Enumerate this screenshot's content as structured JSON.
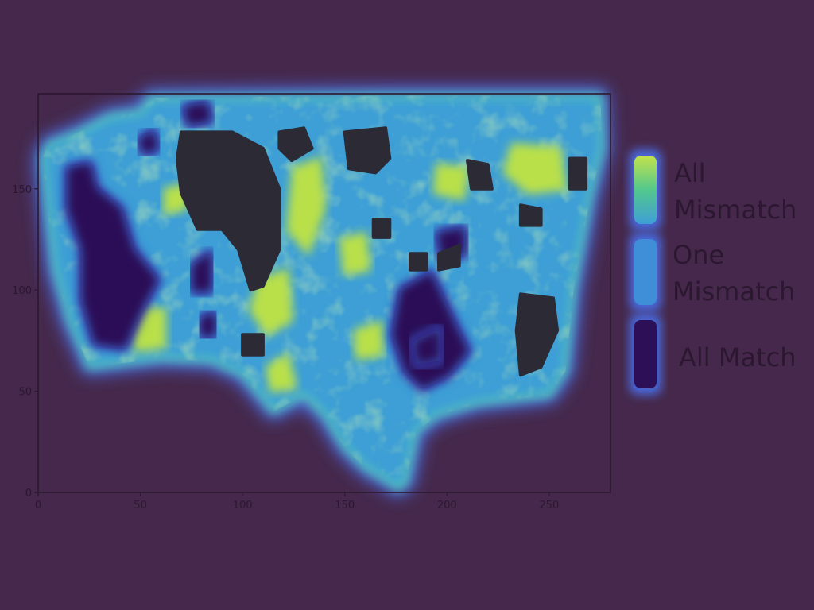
{
  "chart_data": {
    "type": "heatmap",
    "title": "",
    "xlabel": "",
    "ylabel": "",
    "xlim": [
      0,
      280
    ],
    "ylim": [
      0,
      197
    ],
    "x_ticks": [
      0,
      50,
      100,
      150,
      200,
      250
    ],
    "y_ticks": [
      0,
      50,
      100,
      150
    ],
    "grid": false,
    "legend_placement": "right",
    "categories": [
      {
        "label_lines": [
          "All",
          "Mismatch"
        ],
        "color": "#b9e04a"
      },
      {
        "label_lines": [
          "One",
          "Mismatch"
        ],
        "color": "#3b8fd6"
      },
      {
        "label_lines": [
          "All Match"
        ],
        "color": "#2c0f57"
      }
    ],
    "outline": [
      [
        2,
        165
      ],
      [
        5,
        172
      ],
      [
        20,
        178
      ],
      [
        35,
        186
      ],
      [
        50,
        188
      ],
      [
        55,
        195
      ],
      [
        170,
        196
      ],
      [
        275,
        196
      ],
      [
        276,
        170
      ],
      [
        270,
        145
      ],
      [
        262,
        100
      ],
      [
        258,
        60
      ],
      [
        250,
        48
      ],
      [
        215,
        44
      ],
      [
        195,
        38
      ],
      [
        185,
        30
      ],
      [
        180,
        5
      ],
      [
        176,
        2
      ],
      [
        170,
        6
      ],
      [
        160,
        12
      ],
      [
        150,
        22
      ],
      [
        140,
        38
      ],
      [
        130,
        48
      ],
      [
        115,
        40
      ],
      [
        100,
        58
      ],
      [
        85,
        65
      ],
      [
        60,
        66
      ],
      [
        25,
        62
      ],
      [
        15,
        85
      ],
      [
        8,
        110
      ],
      [
        5,
        135
      ]
    ],
    "regions": [
      {
        "class": "All Mismatch",
        "points": [
          [
            125,
            160
          ],
          [
            138,
            165
          ],
          [
            140,
            140
          ],
          [
            132,
            118
          ],
          [
            122,
            130
          ]
        ]
      },
      {
        "class": "All Mismatch",
        "points": [
          [
            232,
            172
          ],
          [
            255,
            170
          ],
          [
            258,
            150
          ],
          [
            240,
            148
          ],
          [
            228,
            158
          ]
        ]
      },
      {
        "class": "All Mismatch",
        "points": [
          [
            48,
            92
          ],
          [
            62,
            90
          ],
          [
            62,
            72
          ],
          [
            48,
            70
          ],
          [
            44,
            80
          ]
        ]
      },
      {
        "class": "All Mismatch",
        "points": [
          [
            108,
            105
          ],
          [
            122,
            110
          ],
          [
            124,
            85
          ],
          [
            112,
            78
          ],
          [
            104,
            90
          ]
        ]
      },
      {
        "class": "All Mismatch",
        "points": [
          [
            195,
            162
          ],
          [
            210,
            160
          ],
          [
            208,
            145
          ],
          [
            194,
            148
          ]
        ]
      },
      {
        "class": "All Mismatch",
        "points": [
          [
            148,
            125
          ],
          [
            160,
            128
          ],
          [
            162,
            110
          ],
          [
            150,
            108
          ]
        ]
      },
      {
        "class": "All Mismatch",
        "points": [
          [
            112,
            62
          ],
          [
            122,
            68
          ],
          [
            126,
            52
          ],
          [
            114,
            50
          ]
        ]
      },
      {
        "class": "All Mismatch",
        "points": [
          [
            62,
            150
          ],
          [
            74,
            152
          ],
          [
            72,
            140
          ],
          [
            62,
            138
          ]
        ]
      },
      {
        "class": "All Mismatch",
        "points": [
          [
            155,
            80
          ],
          [
            168,
            84
          ],
          [
            168,
            68
          ],
          [
            156,
            66
          ]
        ]
      },
      {
        "class": "All Match",
        "points": [
          [
            15,
            160
          ],
          [
            25,
            162
          ],
          [
            28,
            150
          ],
          [
            40,
            140
          ],
          [
            46,
            120
          ],
          [
            58,
            105
          ],
          [
            50,
            90
          ],
          [
            42,
            72
          ],
          [
            28,
            74
          ],
          [
            22,
            95
          ],
          [
            22,
            120
          ],
          [
            15,
            140
          ]
        ]
      },
      {
        "class": "All Match",
        "points": [
          [
            178,
            100
          ],
          [
            192,
            108
          ],
          [
            198,
            95
          ],
          [
            205,
            80
          ],
          [
            210,
            70
          ],
          [
            200,
            58
          ],
          [
            188,
            52
          ],
          [
            180,
            60
          ],
          [
            174,
            78
          ]
        ]
      },
      {
        "class": "All Match",
        "points": [
          [
            72,
            190
          ],
          [
            82,
            192
          ],
          [
            84,
            184
          ],
          [
            74,
            182
          ]
        ]
      },
      {
        "class": "All Match",
        "points": [
          [
            50,
            174
          ],
          [
            56,
            178
          ],
          [
            58,
            170
          ],
          [
            52,
            168
          ]
        ]
      },
      {
        "class": "All Match",
        "points": [
          [
            76,
            112
          ],
          [
            84,
            118
          ],
          [
            84,
            100
          ],
          [
            76,
            100
          ]
        ]
      },
      {
        "class": "All Match",
        "points": [
          [
            196,
            128
          ],
          [
            208,
            130
          ],
          [
            208,
            118
          ],
          [
            198,
            116
          ]
        ]
      },
      {
        "class": "All Match",
        "points": [
          [
            80,
            86
          ],
          [
            86,
            88
          ],
          [
            86,
            78
          ],
          [
            80,
            78
          ]
        ]
      },
      {
        "class": "All Match",
        "points": [
          [
            184,
            74
          ],
          [
            196,
            80
          ],
          [
            196,
            66
          ],
          [
            186,
            64
          ]
        ]
      },
      {
        "class": "All Match",
        "points": [
          [
            90,
            162
          ],
          [
            100,
            162
          ],
          [
            100,
            150
          ],
          [
            90,
            150
          ]
        ]
      },
      {
        "class": "Masked",
        "points": [
          [
            70,
            178
          ],
          [
            95,
            178
          ],
          [
            110,
            170
          ],
          [
            118,
            150
          ],
          [
            118,
            120
          ],
          [
            110,
            102
          ],
          [
            104,
            100
          ],
          [
            98,
            120
          ],
          [
            90,
            130
          ],
          [
            78,
            130
          ],
          [
            70,
            148
          ],
          [
            68,
            165
          ]
        ]
      },
      {
        "class": "Masked",
        "points": [
          [
            150,
            178
          ],
          [
            170,
            180
          ],
          [
            172,
            165
          ],
          [
            165,
            158
          ],
          [
            152,
            160
          ]
        ]
      },
      {
        "class": "Masked",
        "points": [
          [
            118,
            178
          ],
          [
            130,
            180
          ],
          [
            134,
            170
          ],
          [
            124,
            164
          ],
          [
            118,
            170
          ]
        ]
      },
      {
        "class": "Masked",
        "points": [
          [
            236,
            98
          ],
          [
            252,
            96
          ],
          [
            254,
            80
          ],
          [
            246,
            62
          ],
          [
            236,
            58
          ],
          [
            234,
            80
          ]
        ]
      },
      {
        "class": "Masked",
        "points": [
          [
            210,
            164
          ],
          [
            220,
            162
          ],
          [
            222,
            150
          ],
          [
            212,
            150
          ]
        ]
      },
      {
        "class": "Masked",
        "points": [
          [
            236,
            142
          ],
          [
            246,
            140
          ],
          [
            246,
            132
          ],
          [
            236,
            132
          ]
        ]
      },
      {
        "class": "Masked",
        "points": [
          [
            260,
            165
          ],
          [
            268,
            165
          ],
          [
            268,
            150
          ],
          [
            260,
            150
          ]
        ]
      },
      {
        "class": "Masked",
        "points": [
          [
            164,
            135
          ],
          [
            172,
            135
          ],
          [
            172,
            126
          ],
          [
            164,
            126
          ]
        ]
      },
      {
        "class": "Masked",
        "points": [
          [
            100,
            78
          ],
          [
            110,
            78
          ],
          [
            110,
            68
          ],
          [
            100,
            68
          ]
        ]
      },
      {
        "class": "Masked",
        "points": [
          [
            182,
            118
          ],
          [
            190,
            118
          ],
          [
            190,
            110
          ],
          [
            182,
            110
          ]
        ]
      },
      {
        "class": "Masked",
        "points": [
          [
            196,
            118
          ],
          [
            206,
            122
          ],
          [
            206,
            112
          ],
          [
            196,
            110
          ]
        ]
      }
    ],
    "colors": {
      "background": "#45284b",
      "base": "#3e9fd6",
      "edge_glow": "#4a6be0",
      "masked": "#2b2a35",
      "axis": "#2b1830"
    }
  }
}
